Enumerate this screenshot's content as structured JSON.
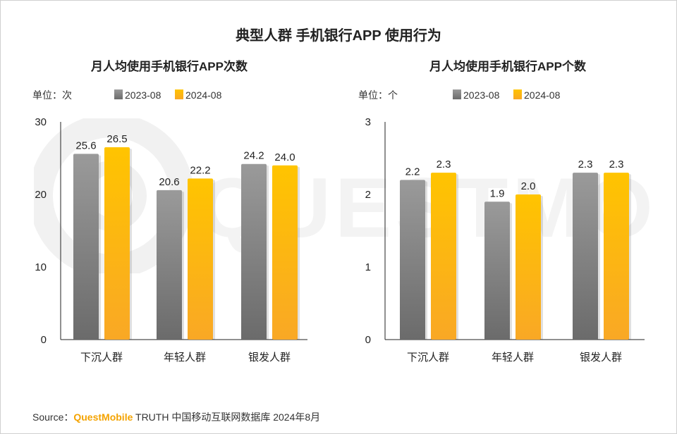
{
  "main_title": "典型人群 手机银行APP 使用行为",
  "source": {
    "prefix": "Source：",
    "brand": "QuestMobile",
    "rest": " TRUTH 中国移动互联网数据库 2024年8月"
  },
  "colors": {
    "series_2023": "#8a8a8a",
    "series_2024": "#ffc000",
    "axis": "#222222",
    "watermark": "#f1f1f1"
  },
  "chart_data": [
    {
      "type": "bar",
      "title": "月人均使用手机银行APP次数",
      "unit": "单位：次",
      "categories": [
        "下沉人群",
        "年轻人群",
        "银发人群"
      ],
      "series": [
        {
          "name": "2023-08",
          "values": [
            25.6,
            20.6,
            24.2
          ]
        },
        {
          "name": "2024-08",
          "values": [
            26.5,
            22.2,
            24.0
          ]
        }
      ],
      "ylim": [
        0,
        30
      ],
      "yticks": [
        "0",
        "10",
        "20",
        "30"
      ],
      "value_labels": [
        [
          "25.6",
          "20.6",
          "24.2"
        ],
        [
          "26.5",
          "22.2",
          "24.0"
        ]
      ],
      "legend": "top-left",
      "grid": false
    },
    {
      "type": "bar",
      "title": "月人均使用手机银行APP个数",
      "unit": "单位：个",
      "categories": [
        "下沉人群",
        "年轻人群",
        "银发人群"
      ],
      "series": [
        {
          "name": "2023-08",
          "values": [
            2.2,
            1.9,
            2.3
          ]
        },
        {
          "name": "2024-08",
          "values": [
            2.3,
            2.0,
            2.3
          ]
        }
      ],
      "ylim": [
        0,
        3
      ],
      "yticks": [
        "0",
        "1",
        "2",
        "3"
      ],
      "value_labels": [
        [
          "2.2",
          "1.9",
          "2.3"
        ],
        [
          "2.3",
          "2.0",
          "2.3"
        ]
      ],
      "legend": "top-left",
      "grid": false
    }
  ]
}
